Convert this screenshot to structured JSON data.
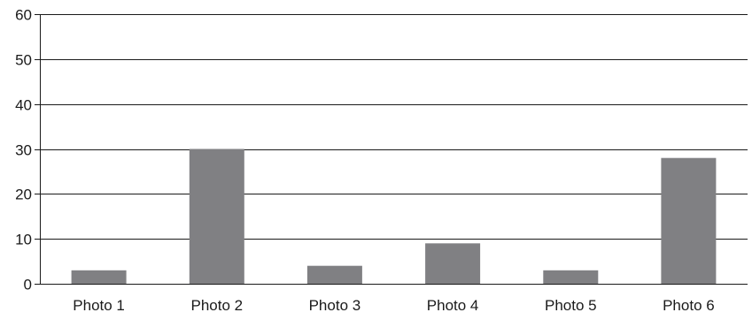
{
  "chart_data": {
    "type": "bar",
    "categories": [
      "Photo 1",
      "Photo 2",
      "Photo 3",
      "Photo 4",
      "Photo 5",
      "Photo 6"
    ],
    "values": [
      3,
      30,
      4,
      9,
      3,
      28
    ],
    "title": "",
    "xlabel": "",
    "ylabel": "",
    "ylim": [
      0,
      60
    ],
    "yticks": [
      0,
      10,
      20,
      30,
      40,
      50,
      60
    ],
    "grid": "horizontal",
    "legend": "none",
    "colors": {
      "bar": "#808083",
      "grid": "#1a1a1a",
      "axis": "#1a1a1a",
      "text": "#1a1a1a"
    }
  }
}
